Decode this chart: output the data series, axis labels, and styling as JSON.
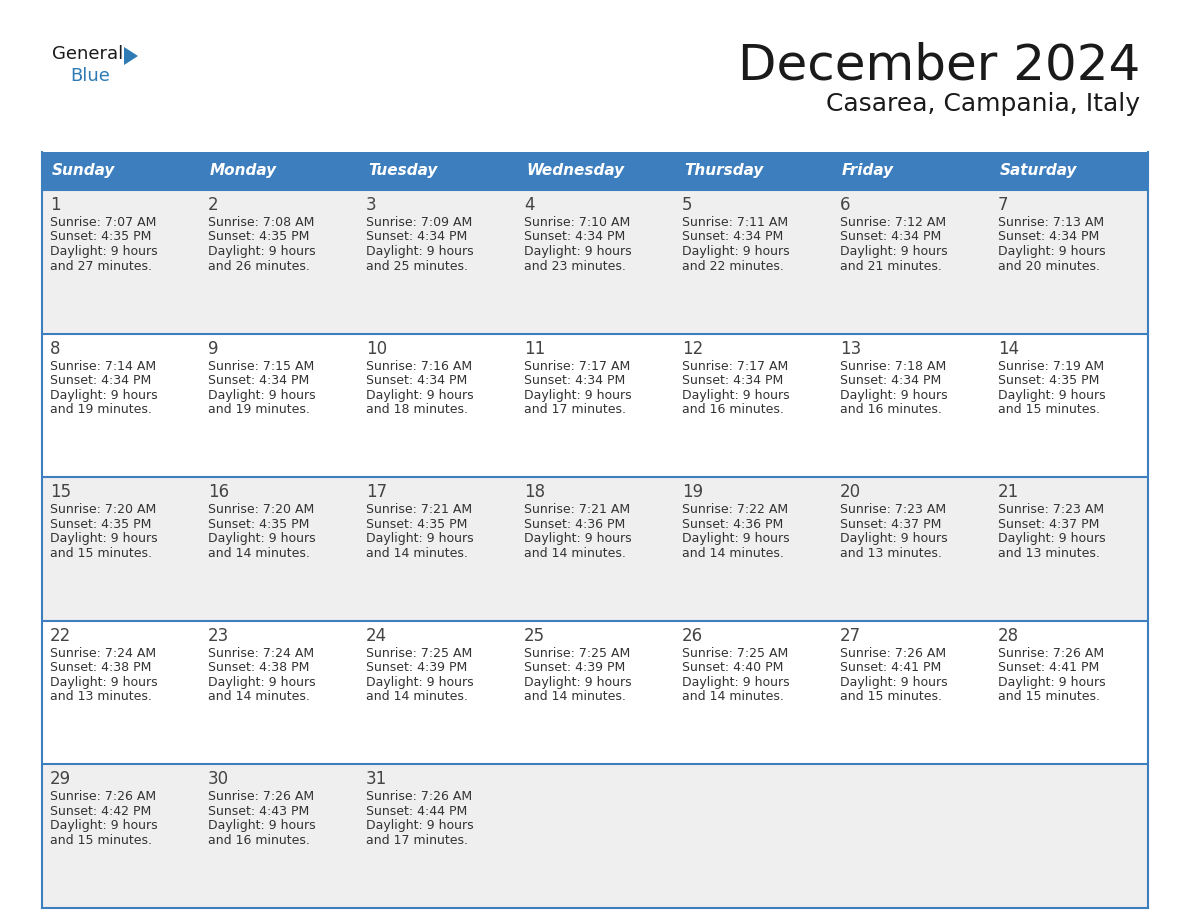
{
  "title": "December 2024",
  "subtitle": "Casarea, Campania, Italy",
  "header_color": "#3d7ebf",
  "header_text_color": "#ffffff",
  "cell_bg_white": "#ffffff",
  "cell_bg_gray": "#efefef",
  "border_color": "#3d7ebf",
  "days_of_week": [
    "Sunday",
    "Monday",
    "Tuesday",
    "Wednesday",
    "Thursday",
    "Friday",
    "Saturday"
  ],
  "weeks": [
    [
      {
        "day": "1",
        "sunrise": "7:07 AM",
        "sunset": "4:35 PM",
        "daylight_line1": "Daylight: 9 hours",
        "daylight_line2": "and 27 minutes."
      },
      {
        "day": "2",
        "sunrise": "7:08 AM",
        "sunset": "4:35 PM",
        "daylight_line1": "Daylight: 9 hours",
        "daylight_line2": "and 26 minutes."
      },
      {
        "day": "3",
        "sunrise": "7:09 AM",
        "sunset": "4:34 PM",
        "daylight_line1": "Daylight: 9 hours",
        "daylight_line2": "and 25 minutes."
      },
      {
        "day": "4",
        "sunrise": "7:10 AM",
        "sunset": "4:34 PM",
        "daylight_line1": "Daylight: 9 hours",
        "daylight_line2": "and 23 minutes."
      },
      {
        "day": "5",
        "sunrise": "7:11 AM",
        "sunset": "4:34 PM",
        "daylight_line1": "Daylight: 9 hours",
        "daylight_line2": "and 22 minutes."
      },
      {
        "day": "6",
        "sunrise": "7:12 AM",
        "sunset": "4:34 PM",
        "daylight_line1": "Daylight: 9 hours",
        "daylight_line2": "and 21 minutes."
      },
      {
        "day": "7",
        "sunrise": "7:13 AM",
        "sunset": "4:34 PM",
        "daylight_line1": "Daylight: 9 hours",
        "daylight_line2": "and 20 minutes."
      }
    ],
    [
      {
        "day": "8",
        "sunrise": "7:14 AM",
        "sunset": "4:34 PM",
        "daylight_line1": "Daylight: 9 hours",
        "daylight_line2": "and 19 minutes."
      },
      {
        "day": "9",
        "sunrise": "7:15 AM",
        "sunset": "4:34 PM",
        "daylight_line1": "Daylight: 9 hours",
        "daylight_line2": "and 19 minutes."
      },
      {
        "day": "10",
        "sunrise": "7:16 AM",
        "sunset": "4:34 PM",
        "daylight_line1": "Daylight: 9 hours",
        "daylight_line2": "and 18 minutes."
      },
      {
        "day": "11",
        "sunrise": "7:17 AM",
        "sunset": "4:34 PM",
        "daylight_line1": "Daylight: 9 hours",
        "daylight_line2": "and 17 minutes."
      },
      {
        "day": "12",
        "sunrise": "7:17 AM",
        "sunset": "4:34 PM",
        "daylight_line1": "Daylight: 9 hours",
        "daylight_line2": "and 16 minutes."
      },
      {
        "day": "13",
        "sunrise": "7:18 AM",
        "sunset": "4:34 PM",
        "daylight_line1": "Daylight: 9 hours",
        "daylight_line2": "and 16 minutes."
      },
      {
        "day": "14",
        "sunrise": "7:19 AM",
        "sunset": "4:35 PM",
        "daylight_line1": "Daylight: 9 hours",
        "daylight_line2": "and 15 minutes."
      }
    ],
    [
      {
        "day": "15",
        "sunrise": "7:20 AM",
        "sunset": "4:35 PM",
        "daylight_line1": "Daylight: 9 hours",
        "daylight_line2": "and 15 minutes."
      },
      {
        "day": "16",
        "sunrise": "7:20 AM",
        "sunset": "4:35 PM",
        "daylight_line1": "Daylight: 9 hours",
        "daylight_line2": "and 14 minutes."
      },
      {
        "day": "17",
        "sunrise": "7:21 AM",
        "sunset": "4:35 PM",
        "daylight_line1": "Daylight: 9 hours",
        "daylight_line2": "and 14 minutes."
      },
      {
        "day": "18",
        "sunrise": "7:21 AM",
        "sunset": "4:36 PM",
        "daylight_line1": "Daylight: 9 hours",
        "daylight_line2": "and 14 minutes."
      },
      {
        "day": "19",
        "sunrise": "7:22 AM",
        "sunset": "4:36 PM",
        "daylight_line1": "Daylight: 9 hours",
        "daylight_line2": "and 14 minutes."
      },
      {
        "day": "20",
        "sunrise": "7:23 AM",
        "sunset": "4:37 PM",
        "daylight_line1": "Daylight: 9 hours",
        "daylight_line2": "and 13 minutes."
      },
      {
        "day": "21",
        "sunrise": "7:23 AM",
        "sunset": "4:37 PM",
        "daylight_line1": "Daylight: 9 hours",
        "daylight_line2": "and 13 minutes."
      }
    ],
    [
      {
        "day": "22",
        "sunrise": "7:24 AM",
        "sunset": "4:38 PM",
        "daylight_line1": "Daylight: 9 hours",
        "daylight_line2": "and 13 minutes."
      },
      {
        "day": "23",
        "sunrise": "7:24 AM",
        "sunset": "4:38 PM",
        "daylight_line1": "Daylight: 9 hours",
        "daylight_line2": "and 14 minutes."
      },
      {
        "day": "24",
        "sunrise": "7:25 AM",
        "sunset": "4:39 PM",
        "daylight_line1": "Daylight: 9 hours",
        "daylight_line2": "and 14 minutes."
      },
      {
        "day": "25",
        "sunrise": "7:25 AM",
        "sunset": "4:39 PM",
        "daylight_line1": "Daylight: 9 hours",
        "daylight_line2": "and 14 minutes."
      },
      {
        "day": "26",
        "sunrise": "7:25 AM",
        "sunset": "4:40 PM",
        "daylight_line1": "Daylight: 9 hours",
        "daylight_line2": "and 14 minutes."
      },
      {
        "day": "27",
        "sunrise": "7:26 AM",
        "sunset": "4:41 PM",
        "daylight_line1": "Daylight: 9 hours",
        "daylight_line2": "and 15 minutes."
      },
      {
        "day": "28",
        "sunrise": "7:26 AM",
        "sunset": "4:41 PM",
        "daylight_line1": "Daylight: 9 hours",
        "daylight_line2": "and 15 minutes."
      }
    ],
    [
      {
        "day": "29",
        "sunrise": "7:26 AM",
        "sunset": "4:42 PM",
        "daylight_line1": "Daylight: 9 hours",
        "daylight_line2": "and 15 minutes."
      },
      {
        "day": "30",
        "sunrise": "7:26 AM",
        "sunset": "4:43 PM",
        "daylight_line1": "Daylight: 9 hours",
        "daylight_line2": "and 16 minutes."
      },
      {
        "day": "31",
        "sunrise": "7:26 AM",
        "sunset": "4:44 PM",
        "daylight_line1": "Daylight: 9 hours",
        "daylight_line2": "and 17 minutes."
      },
      null,
      null,
      null,
      null
    ]
  ],
  "logo_general_color": "#1a1a1a",
  "logo_blue_color": "#2d7ab5",
  "cell_text_color": "#333333",
  "day_num_color": "#444444"
}
